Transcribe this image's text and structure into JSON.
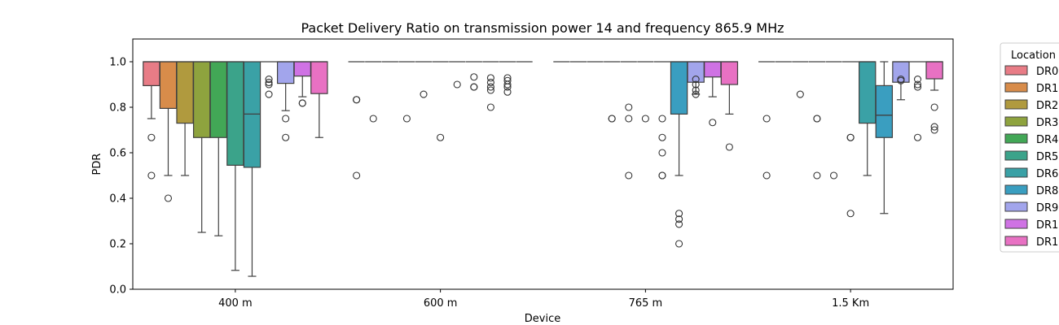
{
  "chart_data": {
    "type": "box",
    "title": "Packet Delivery Ratio on transmission power 14 and frequency 865.9 MHz",
    "xlabel": "Device",
    "ylabel": "PDR",
    "ylim": [
      0.0,
      1.1
    ],
    "yticks": [
      "0.0",
      "0.2",
      "0.4",
      "0.6",
      "0.8",
      "1.0"
    ],
    "categories": [
      "400 m",
      "600 m",
      "765 m",
      "1.5 Km"
    ],
    "grid": false,
    "legend": {
      "title": "Location",
      "placement": "outside-right",
      "entries": [
        "DR0",
        "DR1",
        "DR2",
        "DR3",
        "DR4",
        "DR5",
        "DR6",
        "DR8",
        "DR9",
        "DR1",
        "DR1"
      ]
    },
    "series": [
      {
        "name": "DR0",
        "color": "#e87c86",
        "boxes": [
          {
            "q1": 0.895,
            "median": 1.0,
            "q3": 1.0,
            "whislo": 0.75,
            "whishi": 1.0,
            "fliers": [
              0.667,
              0.5
            ]
          },
          {
            "q1": 1.0,
            "median": 1.0,
            "q3": 1.0,
            "whislo": 1.0,
            "whishi": 1.0,
            "fliers": [
              0.833,
              0.833,
              0.5
            ]
          },
          {
            "q1": 1.0,
            "median": 1.0,
            "q3": 1.0,
            "whislo": 1.0,
            "whishi": 1.0,
            "fliers": []
          },
          {
            "q1": 1.0,
            "median": 1.0,
            "q3": 1.0,
            "whislo": 1.0,
            "whishi": 1.0,
            "fliers": [
              0.75,
              0.5
            ]
          }
        ]
      },
      {
        "name": "DR1",
        "color": "#d88c4a",
        "boxes": [
          {
            "q1": 0.795,
            "median": 1.0,
            "q3": 1.0,
            "whislo": 0.5,
            "whishi": 1.0,
            "fliers": [
              0.4
            ]
          },
          {
            "q1": 1.0,
            "median": 1.0,
            "q3": 1.0,
            "whislo": 1.0,
            "whishi": 1.0,
            "fliers": [
              0.75
            ]
          },
          {
            "q1": 1.0,
            "median": 1.0,
            "q3": 1.0,
            "whislo": 1.0,
            "whishi": 1.0,
            "fliers": []
          },
          {
            "q1": 1.0,
            "median": 1.0,
            "q3": 1.0,
            "whislo": 1.0,
            "whishi": 1.0,
            "fliers": []
          }
        ]
      },
      {
        "name": "DR2",
        "color": "#b09a3e",
        "boxes": [
          {
            "q1": 0.73,
            "median": 1.0,
            "q3": 1.0,
            "whislo": 0.5,
            "whishi": 1.0,
            "fliers": []
          },
          {
            "q1": 1.0,
            "median": 1.0,
            "q3": 1.0,
            "whislo": 1.0,
            "whishi": 1.0,
            "fliers": []
          },
          {
            "q1": 1.0,
            "median": 1.0,
            "q3": 1.0,
            "whislo": 1.0,
            "whishi": 1.0,
            "fliers": []
          },
          {
            "q1": 1.0,
            "median": 1.0,
            "q3": 1.0,
            "whislo": 1.0,
            "whishi": 1.0,
            "fliers": [
              0.857
            ]
          }
        ]
      },
      {
        "name": "DR3",
        "color": "#8ea33e",
        "boxes": [
          {
            "q1": 0.667,
            "median": 1.0,
            "q3": 1.0,
            "whislo": 0.25,
            "whishi": 1.0,
            "fliers": []
          },
          {
            "q1": 1.0,
            "median": 1.0,
            "q3": 1.0,
            "whislo": 1.0,
            "whishi": 1.0,
            "fliers": [
              0.75
            ]
          },
          {
            "q1": 1.0,
            "median": 1.0,
            "q3": 1.0,
            "whislo": 1.0,
            "whishi": 1.0,
            "fliers": [
              0.75,
              0.75
            ]
          },
          {
            "q1": 1.0,
            "median": 1.0,
            "q3": 1.0,
            "whislo": 1.0,
            "whishi": 1.0,
            "fliers": [
              0.75,
              0.75,
              0.5
            ]
          }
        ]
      },
      {
        "name": "DR4",
        "color": "#42a756",
        "boxes": [
          {
            "q1": 0.667,
            "median": 1.0,
            "q3": 1.0,
            "whislo": 0.235,
            "whishi": 1.0,
            "fliers": []
          },
          {
            "q1": 1.0,
            "median": 1.0,
            "q3": 1.0,
            "whislo": 1.0,
            "whishi": 1.0,
            "fliers": [
              0.857
            ]
          },
          {
            "q1": 1.0,
            "median": 1.0,
            "q3": 1.0,
            "whislo": 1.0,
            "whishi": 1.0,
            "fliers": [
              0.8,
              0.75,
              0.5
            ]
          },
          {
            "q1": 1.0,
            "median": 1.0,
            "q3": 1.0,
            "whislo": 1.0,
            "whishi": 1.0,
            "fliers": [
              0.5
            ]
          }
        ]
      },
      {
        "name": "DR5",
        "color": "#3ba38a",
        "boxes": [
          {
            "q1": 0.545,
            "median": 1.0,
            "q3": 1.0,
            "whislo": 0.083,
            "whishi": 1.0,
            "fliers": []
          },
          {
            "q1": 1.0,
            "median": 1.0,
            "q3": 1.0,
            "whislo": 1.0,
            "whishi": 1.0,
            "fliers": [
              0.667
            ]
          },
          {
            "q1": 1.0,
            "median": 1.0,
            "q3": 1.0,
            "whislo": 1.0,
            "whishi": 1.0,
            "fliers": [
              0.75
            ]
          },
          {
            "q1": 1.0,
            "median": 1.0,
            "q3": 1.0,
            "whislo": 1.0,
            "whishi": 1.0,
            "fliers": [
              0.667,
              0.667,
              0.333
            ]
          }
        ]
      },
      {
        "name": "DR6",
        "color": "#3aa1a6",
        "boxes": [
          {
            "q1": 0.536,
            "median": 0.77,
            "q3": 1.0,
            "whislo": 0.057,
            "whishi": 1.0,
            "fliers": []
          },
          {
            "q1": 1.0,
            "median": 1.0,
            "q3": 1.0,
            "whislo": 1.0,
            "whishi": 1.0,
            "fliers": [
              0.9
            ]
          },
          {
            "q1": 1.0,
            "median": 1.0,
            "q3": 1.0,
            "whislo": 1.0,
            "whishi": 1.0,
            "fliers": [
              0.75,
              0.667,
              0.6,
              0.5,
              0.5
            ]
          },
          {
            "q1": 0.73,
            "median": 1.0,
            "q3": 1.0,
            "whislo": 0.5,
            "whishi": 1.0,
            "fliers": []
          }
        ]
      },
      {
        "name": "DR8",
        "color": "#3a9ec0",
        "boxes": [
          {
            "q1": 1.0,
            "median": 1.0,
            "q3": 1.0,
            "whislo": 1.0,
            "whishi": 1.0,
            "fliers": [
              0.923,
              0.909,
              0.9,
              0.857
            ]
          },
          {
            "q1": 1.0,
            "median": 1.0,
            "q3": 1.0,
            "whislo": 1.0,
            "whishi": 1.0,
            "fliers": [
              0.933,
              0.889,
              0.889
            ]
          },
          {
            "q1": 0.77,
            "median": 1.0,
            "q3": 1.0,
            "whislo": 0.5,
            "whishi": 1.0,
            "fliers": [
              0.333,
              0.308,
              0.286,
              0.2
            ]
          },
          {
            "q1": 0.667,
            "median": 0.765,
            "q3": 0.895,
            "whislo": 0.333,
            "whishi": 1.0,
            "fliers": []
          }
        ]
      },
      {
        "name": "DR9",
        "color": "#a2a5ec",
        "boxes": [
          {
            "q1": 0.905,
            "median": 1.0,
            "q3": 1.0,
            "whislo": 0.785,
            "whishi": 1.0,
            "fliers": [
              0.75,
              0.667
            ]
          },
          {
            "q1": 1.0,
            "median": 1.0,
            "q3": 1.0,
            "whislo": 1.0,
            "whishi": 1.0,
            "fliers": [
              0.929,
              0.909,
              0.889,
              0.875,
              0.8
            ]
          },
          {
            "q1": 0.91,
            "median": 1.0,
            "q3": 1.0,
            "whislo": 0.857,
            "whishi": 1.0,
            "fliers": [
              0.923,
              0.9,
              0.875,
              0.857
            ]
          },
          {
            "q1": 0.91,
            "median": 1.0,
            "q3": 1.0,
            "whislo": 0.833,
            "whishi": 1.0,
            "fliers": [
              0.923,
              0.917
            ]
          }
        ]
      },
      {
        "name": "DR1",
        "color": "#cf72e4",
        "boxes": [
          {
            "q1": 0.937,
            "median": 1.0,
            "q3": 1.0,
            "whislo": 0.846,
            "whishi": 1.0,
            "fliers": [
              0.818,
              0.818
            ]
          },
          {
            "q1": 1.0,
            "median": 1.0,
            "q3": 1.0,
            "whislo": 1.0,
            "whishi": 1.0,
            "fliers": [
              0.929,
              0.917,
              0.9,
              0.889,
              0.867
            ]
          },
          {
            "q1": 0.933,
            "median": 1.0,
            "q3": 1.0,
            "whislo": 0.846,
            "whishi": 1.0,
            "fliers": [
              0.733
            ]
          },
          {
            "q1": 1.0,
            "median": 1.0,
            "q3": 1.0,
            "whislo": 1.0,
            "whishi": 1.0,
            "fliers": [
              0.667,
              0.923,
              0.9,
              0.889
            ]
          }
        ]
      },
      {
        "name": "DR1",
        "color": "#e871c3",
        "boxes": [
          {
            "q1": 0.86,
            "median": 1.0,
            "q3": 1.0,
            "whislo": 0.667,
            "whishi": 1.0,
            "fliers": []
          },
          {
            "q1": 1.0,
            "median": 1.0,
            "q3": 1.0,
            "whislo": 1.0,
            "whishi": 1.0,
            "fliers": []
          },
          {
            "q1": 0.9,
            "median": 1.0,
            "q3": 1.0,
            "whislo": 0.77,
            "whishi": 1.0,
            "fliers": [
              0.625
            ]
          },
          {
            "q1": 0.925,
            "median": 1.0,
            "q3": 1.0,
            "whislo": 0.875,
            "whishi": 1.0,
            "fliers": [
              0.8,
              0.714,
              0.7
            ]
          }
        ]
      }
    ]
  }
}
